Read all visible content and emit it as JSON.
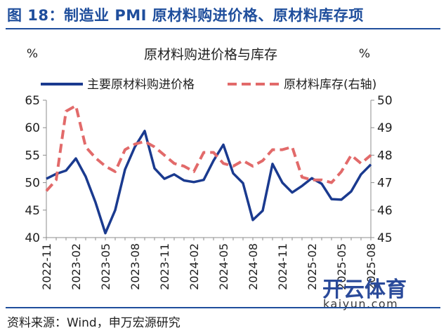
{
  "header": {
    "title": "图 18：制造业 PMI 原材料购进价格、原材料库存项"
  },
  "footer": {
    "source": "资料来源：Wind，申万宏源研究"
  },
  "watermark": {
    "brand": "开云体育",
    "url": "kaiyun.com"
  },
  "chart_data": {
    "type": "line",
    "title": "原材料购进价格与库存",
    "left_unit": "%",
    "right_unit": "%",
    "legend_placement": "top",
    "grid": false,
    "x_ticks": [
      "2022-11",
      "2023-02",
      "2023-05",
      "2023-08",
      "2023-11",
      "2024-02",
      "2024-05",
      "2024-08",
      "2024-11",
      "2025-02",
      "2025-05",
      "2025-08"
    ],
    "x": [
      "2022-11",
      "2022-12",
      "2023-01",
      "2023-02",
      "2023-03",
      "2023-04",
      "2023-05",
      "2023-06",
      "2023-07",
      "2023-08",
      "2023-09",
      "2023-10",
      "2023-11",
      "2023-12",
      "2024-01",
      "2024-02",
      "2024-03",
      "2024-04",
      "2024-05",
      "2024-06",
      "2024-07",
      "2024-08",
      "2024-09",
      "2024-10",
      "2024-11",
      "2024-12",
      "2025-01",
      "2025-02",
      "2025-03",
      "2025-04",
      "2025-05",
      "2025-06",
      "2025-07",
      "2025-08"
    ],
    "left_axis": {
      "ylim": [
        40,
        65
      ],
      "ticks": [
        40,
        45,
        50,
        55,
        60,
        65
      ]
    },
    "right_axis": {
      "ylim": [
        45,
        50
      ],
      "ticks": [
        45,
        46,
        47,
        48,
        49,
        50
      ]
    },
    "series": [
      {
        "name": "主要原材料购进价格",
        "axis": "left",
        "style": "solid",
        "color": "#1a3a8f",
        "values": [
          50.7,
          51.6,
          52.2,
          54.4,
          51.1,
          46.4,
          40.8,
          45.0,
          52.4,
          56.5,
          59.4,
          52.6,
          50.7,
          51.5,
          50.4,
          50.1,
          50.5,
          54.0,
          56.9,
          51.7,
          49.9,
          43.2,
          44.9,
          53.4,
          50.0,
          48.2,
          49.4,
          50.8,
          49.8,
          47.0,
          46.9,
          48.4,
          51.5,
          53.3
        ]
      },
      {
        "name": "原材料库存(右轴)",
        "axis": "right",
        "style": "dashed",
        "color": "#e26a6a",
        "values": [
          46.7,
          47.1,
          49.6,
          49.8,
          48.3,
          47.9,
          47.6,
          47.4,
          48.2,
          48.4,
          48.5,
          48.3,
          48.0,
          47.7,
          47.6,
          47.4,
          48.1,
          48.1,
          47.7,
          47.6,
          47.8,
          47.6,
          47.8,
          48.2,
          48.2,
          48.3,
          47.2,
          47.1,
          47.1,
          47.0,
          47.4,
          48.0,
          47.7,
          48.0
        ]
      }
    ]
  }
}
